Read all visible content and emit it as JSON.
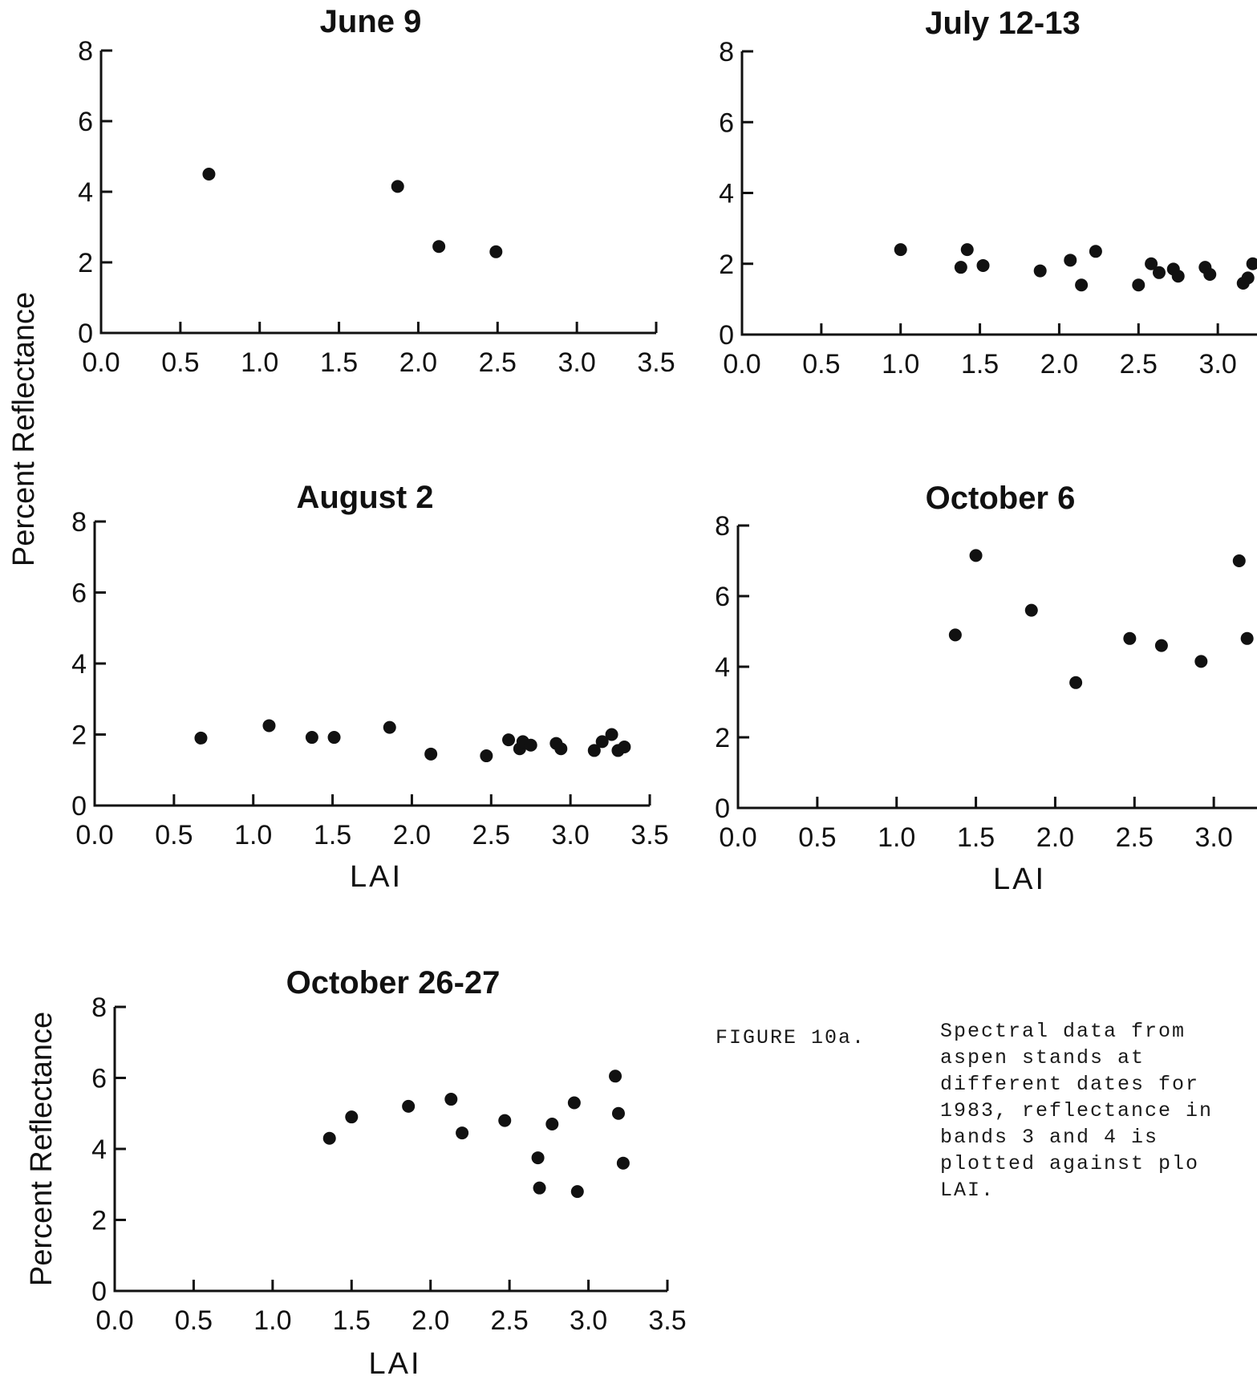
{
  "figure": {
    "ylabel_shared": "Percent Reflectance",
    "caption_label": "FIGURE 10a.",
    "caption_lines": [
      "Spectral data from",
      "aspen stands at",
      "different dates for",
      "1983, reflectance in",
      "bands 3 and 4 is",
      "plotted against plo",
      "LAI."
    ]
  },
  "chart_data": [
    {
      "type": "scatter",
      "title": "June 9",
      "xlabel": "",
      "ylabel": "",
      "xlim": [
        0.0,
        3.5
      ],
      "ylim": [
        0,
        8
      ],
      "x_ticks": [
        "0.0",
        "0.5",
        "1.0",
        "1.5",
        "2.0",
        "2.5",
        "3.0",
        "3.5"
      ],
      "y_ticks": [
        "0",
        "2",
        "4",
        "6",
        "8"
      ],
      "points": [
        {
          "x": 0.68,
          "y": 4.5
        },
        {
          "x": 1.87,
          "y": 4.15
        },
        {
          "x": 2.13,
          "y": 2.45
        },
        {
          "x": 2.49,
          "y": 2.3
        }
      ]
    },
    {
      "type": "scatter",
      "title": "July 12-13",
      "xlabel": "",
      "ylabel": "",
      "xlim": [
        0.0,
        3.5
      ],
      "ylim": [
        0,
        8
      ],
      "x_ticks": [
        "0.0",
        "0.5",
        "1.0",
        "1.5",
        "2.0",
        "2.5",
        "3.0"
      ],
      "y_ticks": [
        "0",
        "2",
        "4",
        "6",
        "8"
      ],
      "points": [
        {
          "x": 1.0,
          "y": 2.4
        },
        {
          "x": 1.38,
          "y": 1.9
        },
        {
          "x": 1.42,
          "y": 2.4
        },
        {
          "x": 1.52,
          "y": 1.95
        },
        {
          "x": 1.88,
          "y": 1.8
        },
        {
          "x": 2.07,
          "y": 2.1
        },
        {
          "x": 2.14,
          "y": 1.4
        },
        {
          "x": 2.23,
          "y": 2.35
        },
        {
          "x": 2.5,
          "y": 1.4
        },
        {
          "x": 2.58,
          "y": 2.0
        },
        {
          "x": 2.63,
          "y": 1.75
        },
        {
          "x": 2.72,
          "y": 1.85
        },
        {
          "x": 2.75,
          "y": 1.65
        },
        {
          "x": 2.92,
          "y": 1.9
        },
        {
          "x": 2.95,
          "y": 1.7
        },
        {
          "x": 3.16,
          "y": 1.45
        },
        {
          "x": 3.19,
          "y": 1.6
        },
        {
          "x": 3.22,
          "y": 2.0
        }
      ]
    },
    {
      "type": "scatter",
      "title": "August 2",
      "xlabel": "LAI",
      "ylabel": "",
      "xlim": [
        0.0,
        3.5
      ],
      "ylim": [
        0,
        8
      ],
      "x_ticks": [
        "0.0",
        "0.5",
        "1.0",
        "1.5",
        "2.0",
        "2.5",
        "3.0",
        "3.5"
      ],
      "y_ticks": [
        "0",
        "2",
        "4",
        "6",
        "8"
      ],
      "points": [
        {
          "x": 0.67,
          "y": 1.9
        },
        {
          "x": 1.1,
          "y": 2.25
        },
        {
          "x": 1.37,
          "y": 1.92
        },
        {
          "x": 1.51,
          "y": 1.92
        },
        {
          "x": 1.86,
          "y": 2.2
        },
        {
          "x": 2.12,
          "y": 1.45
        },
        {
          "x": 2.47,
          "y": 1.4
        },
        {
          "x": 2.61,
          "y": 1.85
        },
        {
          "x": 2.68,
          "y": 1.6
        },
        {
          "x": 2.7,
          "y": 1.8
        },
        {
          "x": 2.75,
          "y": 1.7
        },
        {
          "x": 2.91,
          "y": 1.75
        },
        {
          "x": 2.94,
          "y": 1.6
        },
        {
          "x": 3.15,
          "y": 1.55
        },
        {
          "x": 3.2,
          "y": 1.8
        },
        {
          "x": 3.26,
          "y": 2.0
        },
        {
          "x": 3.3,
          "y": 1.55
        },
        {
          "x": 3.34,
          "y": 1.65
        }
      ]
    },
    {
      "type": "scatter",
      "title": "October 6",
      "xlabel": "LAI",
      "ylabel": "",
      "xlim": [
        0.0,
        3.5
      ],
      "ylim": [
        0,
        8
      ],
      "x_ticks": [
        "0.0",
        "0.5",
        "1.0",
        "1.5",
        "2.0",
        "2.5",
        "3.0"
      ],
      "y_ticks": [
        "0",
        "2",
        "4",
        "6",
        "8"
      ],
      "points": [
        {
          "x": 1.37,
          "y": 4.9
        },
        {
          "x": 1.5,
          "y": 7.15
        },
        {
          "x": 1.85,
          "y": 5.6
        },
        {
          "x": 2.13,
          "y": 3.55
        },
        {
          "x": 2.47,
          "y": 4.8
        },
        {
          "x": 2.67,
          "y": 4.6
        },
        {
          "x": 2.92,
          "y": 4.15
        },
        {
          "x": 3.16,
          "y": 7.0
        },
        {
          "x": 3.21,
          "y": 4.8
        }
      ]
    },
    {
      "type": "scatter",
      "title": "October 26-27",
      "xlabel": "LAI",
      "ylabel": "Percent Reflectance",
      "xlim": [
        0.0,
        3.5
      ],
      "ylim": [
        0,
        8
      ],
      "x_ticks": [
        "0.0",
        "0.5",
        "1.0",
        "1.5",
        "2.0",
        "2.5",
        "3.0",
        "3.5"
      ],
      "y_ticks": [
        "0",
        "2",
        "4",
        "6",
        "8"
      ],
      "points": [
        {
          "x": 1.36,
          "y": 4.3
        },
        {
          "x": 1.5,
          "y": 4.9
        },
        {
          "x": 1.86,
          "y": 5.2
        },
        {
          "x": 2.13,
          "y": 5.4
        },
        {
          "x": 2.2,
          "y": 4.45
        },
        {
          "x": 2.47,
          "y": 4.8
        },
        {
          "x": 2.68,
          "y": 3.75
        },
        {
          "x": 2.69,
          "y": 2.9
        },
        {
          "x": 2.77,
          "y": 4.7
        },
        {
          "x": 2.91,
          "y": 5.3
        },
        {
          "x": 2.93,
          "y": 2.8
        },
        {
          "x": 3.17,
          "y": 6.05
        },
        {
          "x": 3.19,
          "y": 5.0
        },
        {
          "x": 3.22,
          "y": 3.6
        }
      ]
    }
  ]
}
